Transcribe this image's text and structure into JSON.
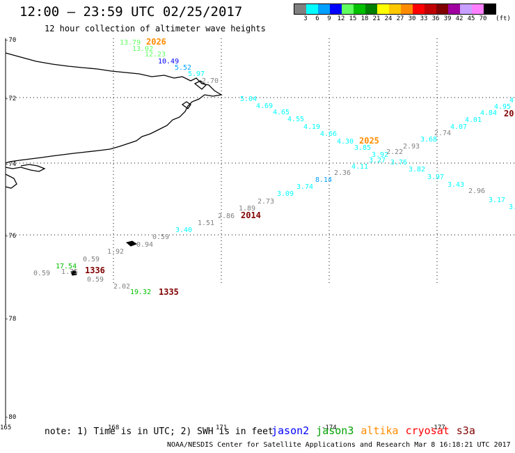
{
  "header": {
    "title": "12:00 – 23:59 UTC 02/25/2017",
    "subtitle": "12 hour collection of altimeter wave heights"
  },
  "legend": {
    "unit": "(ft)",
    "bins": [
      {
        "label": "3",
        "color": "#808080"
      },
      {
        "label": "6",
        "color": "#00ffff"
      },
      {
        "label": "9",
        "color": "#00a0ff"
      },
      {
        "label": "12",
        "color": "#0000ff"
      },
      {
        "label": "15",
        "color": "#60ff60"
      },
      {
        "label": "18",
        "color": "#00c000"
      },
      {
        "label": "21",
        "color": "#008000"
      },
      {
        "label": "24",
        "color": "#ffff00"
      },
      {
        "label": "27",
        "color": "#ffc800"
      },
      {
        "label": "30",
        "color": "#ff8c00"
      },
      {
        "label": "33",
        "color": "#ff0000"
      },
      {
        "label": "36",
        "color": "#c00000"
      },
      {
        "label": "39",
        "color": "#800000"
      },
      {
        "label": "42",
        "color": "#a000a0"
      },
      {
        "label": "45",
        "color": "#c8a0ff"
      },
      {
        "label": "70",
        "color": "#ff80ff"
      },
      {
        "label": "",
        "color": "#000000"
      }
    ]
  },
  "axes": {
    "lat_labels": [
      "-70",
      "-72",
      "-74",
      "-76",
      "-78",
      "-80"
    ],
    "lon_labels": [
      "165",
      "168",
      "171",
      "-174",
      "-177"
    ]
  },
  "map": {
    "wave_heights": [
      {
        "v": "13.79",
        "c": "#60ff60"
      },
      {
        "v": "13.02",
        "c": "#60ff60"
      },
      {
        "v": "12.23",
        "c": "#60ff60"
      },
      {
        "v": "10.49",
        "c": "#0000ff"
      },
      {
        "v": "5.52",
        "c": "#00a0ff"
      },
      {
        "v": "5.97",
        "c": "#00ffff"
      },
      {
        "v": "2.70",
        "c": "#808080"
      },
      {
        "v": "5.04",
        "c": "#00ffff"
      },
      {
        "v": "4.69",
        "c": "#00ffff"
      },
      {
        "v": "4.65",
        "c": "#00ffff"
      },
      {
        "v": "4.55",
        "c": "#00ffff"
      },
      {
        "v": "4.19",
        "c": "#00ffff"
      },
      {
        "v": "4.66",
        "c": "#00ffff"
      },
      {
        "v": "4.30",
        "c": "#00ffff"
      },
      {
        "v": "3.85",
        "c": "#00ffff"
      },
      {
        "v": "3.92",
        "c": "#00ffff"
      },
      {
        "v": "3.27",
        "c": "#00ffff"
      },
      {
        "v": "3.76",
        "c": "#00ffff"
      },
      {
        "v": "3.82",
        "c": "#00ffff"
      },
      {
        "v": "3.97",
        "c": "#00ffff"
      },
      {
        "v": "3.43",
        "c": "#00ffff"
      },
      {
        "v": "2.96",
        "c": "#808080"
      },
      {
        "v": "3.17",
        "c": "#00ffff"
      },
      {
        "v": "3.",
        "c": "#00ffff"
      },
      {
        "v": "2.22",
        "c": "#808080"
      },
      {
        "v": "2.93",
        "c": "#808080"
      },
      {
        "v": "3.68",
        "c": "#00ffff"
      },
      {
        "v": "2.74",
        "c": "#808080"
      },
      {
        "v": "4.07",
        "c": "#00ffff"
      },
      {
        "v": "4.01",
        "c": "#00ffff"
      },
      {
        "v": "4.84",
        "c": "#00ffff"
      },
      {
        "v": "4.95",
        "c": "#00ffff"
      },
      {
        "v": "4.",
        "c": "#00ffff"
      },
      {
        "v": "4.11",
        "c": "#00ffff"
      },
      {
        "v": "2.36",
        "c": "#808080"
      },
      {
        "v": "8.14",
        "c": "#00a0ff"
      },
      {
        "v": "3.74",
        "c": "#00ffff"
      },
      {
        "v": "3.09",
        "c": "#00ffff"
      },
      {
        "v": "2.73",
        "c": "#808080"
      },
      {
        "v": "1.89",
        "c": "#808080"
      },
      {
        "v": "2.86",
        "c": "#808080"
      },
      {
        "v": "1.51",
        "c": "#808080"
      },
      {
        "v": "3.40",
        "c": "#00ffff"
      },
      {
        "v": "0.59",
        "c": "#808080"
      },
      {
        "v": "0.94",
        "c": "#808080"
      },
      {
        "v": "1.92",
        "c": "#808080"
      },
      {
        "v": "0.59",
        "c": "#808080"
      },
      {
        "v": "17.54",
        "c": "#00c000"
      },
      {
        "v": "1.75",
        "c": "#808080"
      },
      {
        "v": "0.59",
        "c": "#808080"
      },
      {
        "v": "0.59",
        "c": "#808080"
      },
      {
        "v": "2.02",
        "c": "#808080"
      },
      {
        "v": "19.32",
        "c": "#00c000"
      }
    ],
    "time_labels": [
      {
        "v": "2026",
        "c": "#ff8c00"
      },
      {
        "v": "2025",
        "c": "#ff8c00"
      },
      {
        "v": "2014",
        "c": "#800000"
      },
      {
        "v": "1336",
        "c": "#800000"
      },
      {
        "v": "1335",
        "c": "#800000"
      },
      {
        "v": "20",
        "c": "#800000"
      }
    ]
  },
  "footer": {
    "note": "note: 1) Time is in UTC; 2) SWH is in feet",
    "satellites": [
      {
        "name": "jason2",
        "color": "#0000ff"
      },
      {
        "name": "jason3",
        "color": "#00a000"
      },
      {
        "name": "altika",
        "color": "#ff8c00"
      },
      {
        "name": "cryosat",
        "color": "#ff0000"
      },
      {
        "name": "s3a",
        "color": "#800000"
      }
    ],
    "credit": "NOAA/NESDIS Center for Satellite Applications and Research   Mar  8 16:18:21 UTC 2017"
  }
}
